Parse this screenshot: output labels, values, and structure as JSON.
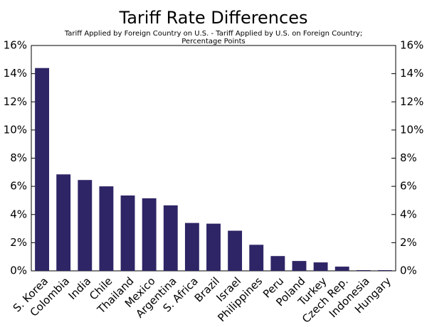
{
  "chart_data": {
    "type": "bar",
    "title": "Tariff Rate Differences",
    "subtitle": [
      "Tariff Applied by Foreign Country on U.S. - Tariff Applied by U.S. on Foreign Country;",
      "Percentage Points"
    ],
    "categories": [
      "S. Korea",
      "Colombia",
      "India",
      "Chile",
      "Thailand",
      "Mexico",
      "Argentina",
      "S. Africa",
      "Brazil",
      "Israel",
      "Philippines",
      "Peru",
      "Poland",
      "Turkey",
      "Czech Rep.",
      "Indonesia",
      "Hungary"
    ],
    "values": [
      14.4,
      6.85,
      6.45,
      6.0,
      5.35,
      5.15,
      4.65,
      3.4,
      3.35,
      2.85,
      1.85,
      1.05,
      0.7,
      0.6,
      0.3,
      0.05,
      0.05
    ],
    "color": "#2e2566",
    "ylim": [
      0,
      16
    ],
    "yticks": [
      {
        "value": 0,
        "label": "0%"
      },
      {
        "value": 2,
        "label": "2%"
      },
      {
        "value": 4,
        "label": "4%"
      },
      {
        "value": 6,
        "label": "6%"
      },
      {
        "value": 8,
        "label": "8%"
      },
      {
        "value": 10,
        "label": "10%"
      },
      {
        "value": 12,
        "label": "12%"
      },
      {
        "value": 14,
        "label": "14%"
      },
      {
        "value": 16,
        "label": "16%"
      }
    ],
    "right_axis": true
  }
}
